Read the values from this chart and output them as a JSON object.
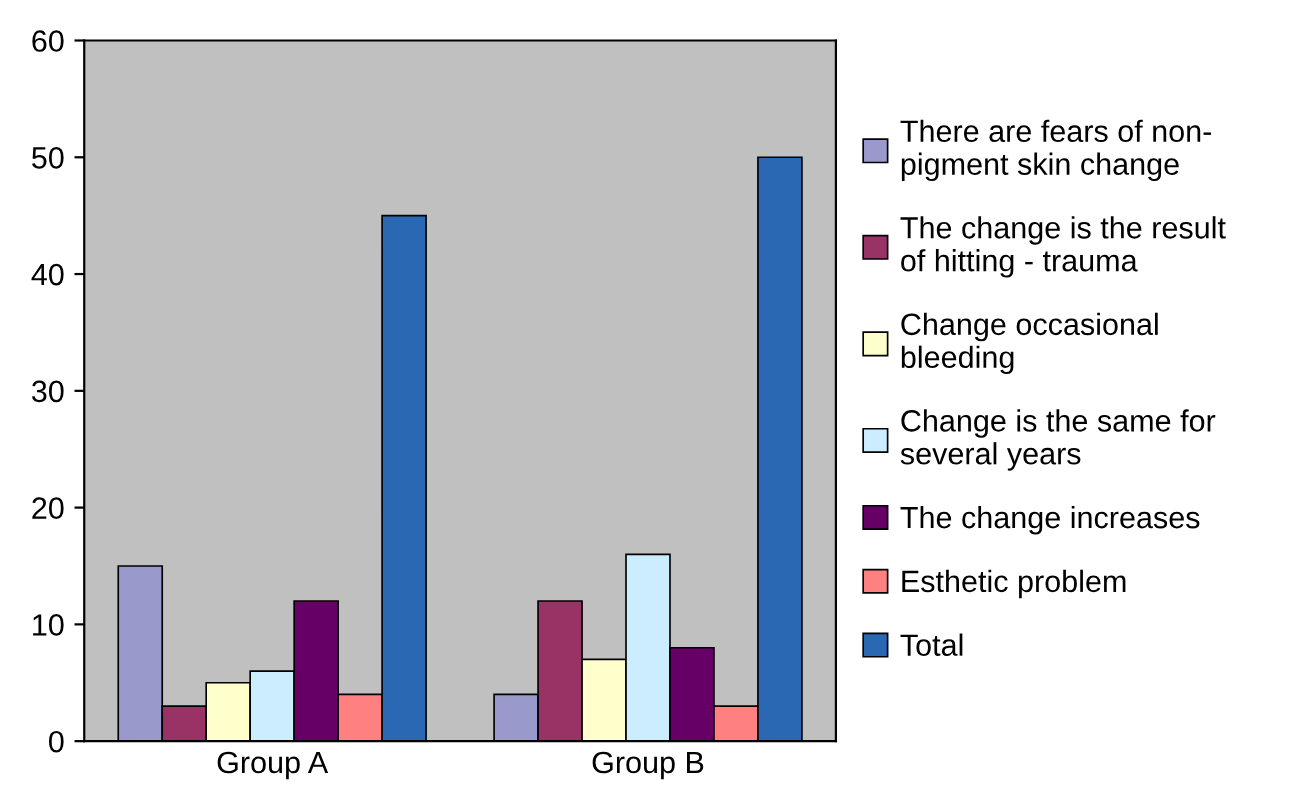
{
  "chart_data": {
    "type": "bar",
    "categories": [
      "Group A",
      "Group B"
    ],
    "series": [
      {
        "name": "There are fears of non-\npigment skin change",
        "color": "#9999cc",
        "values": [
          15,
          4
        ]
      },
      {
        "name": "The change is the result\nof hitting - trauma",
        "color": "#993366",
        "values": [
          3,
          12
        ]
      },
      {
        "name": "Change occasional\nbleeding",
        "color": "#ffffcc",
        "values": [
          5,
          7
        ]
      },
      {
        "name": "Change is the same for\nseveral years",
        "color": "#ccecff",
        "values": [
          6,
          16
        ]
      },
      {
        "name": "The change increases",
        "color": "#660066",
        "values": [
          12,
          8
        ]
      },
      {
        "name": "Esthetic problem",
        "color": "#ff8080",
        "values": [
          4,
          3
        ]
      },
      {
        "name": "Total",
        "color": "#2a68b4",
        "values": [
          45,
          50
        ]
      }
    ],
    "ylim": [
      0,
      60
    ],
    "yticks": [
      0,
      10,
      20,
      30,
      40,
      50,
      60
    ],
    "grid": false,
    "legend": "right"
  }
}
